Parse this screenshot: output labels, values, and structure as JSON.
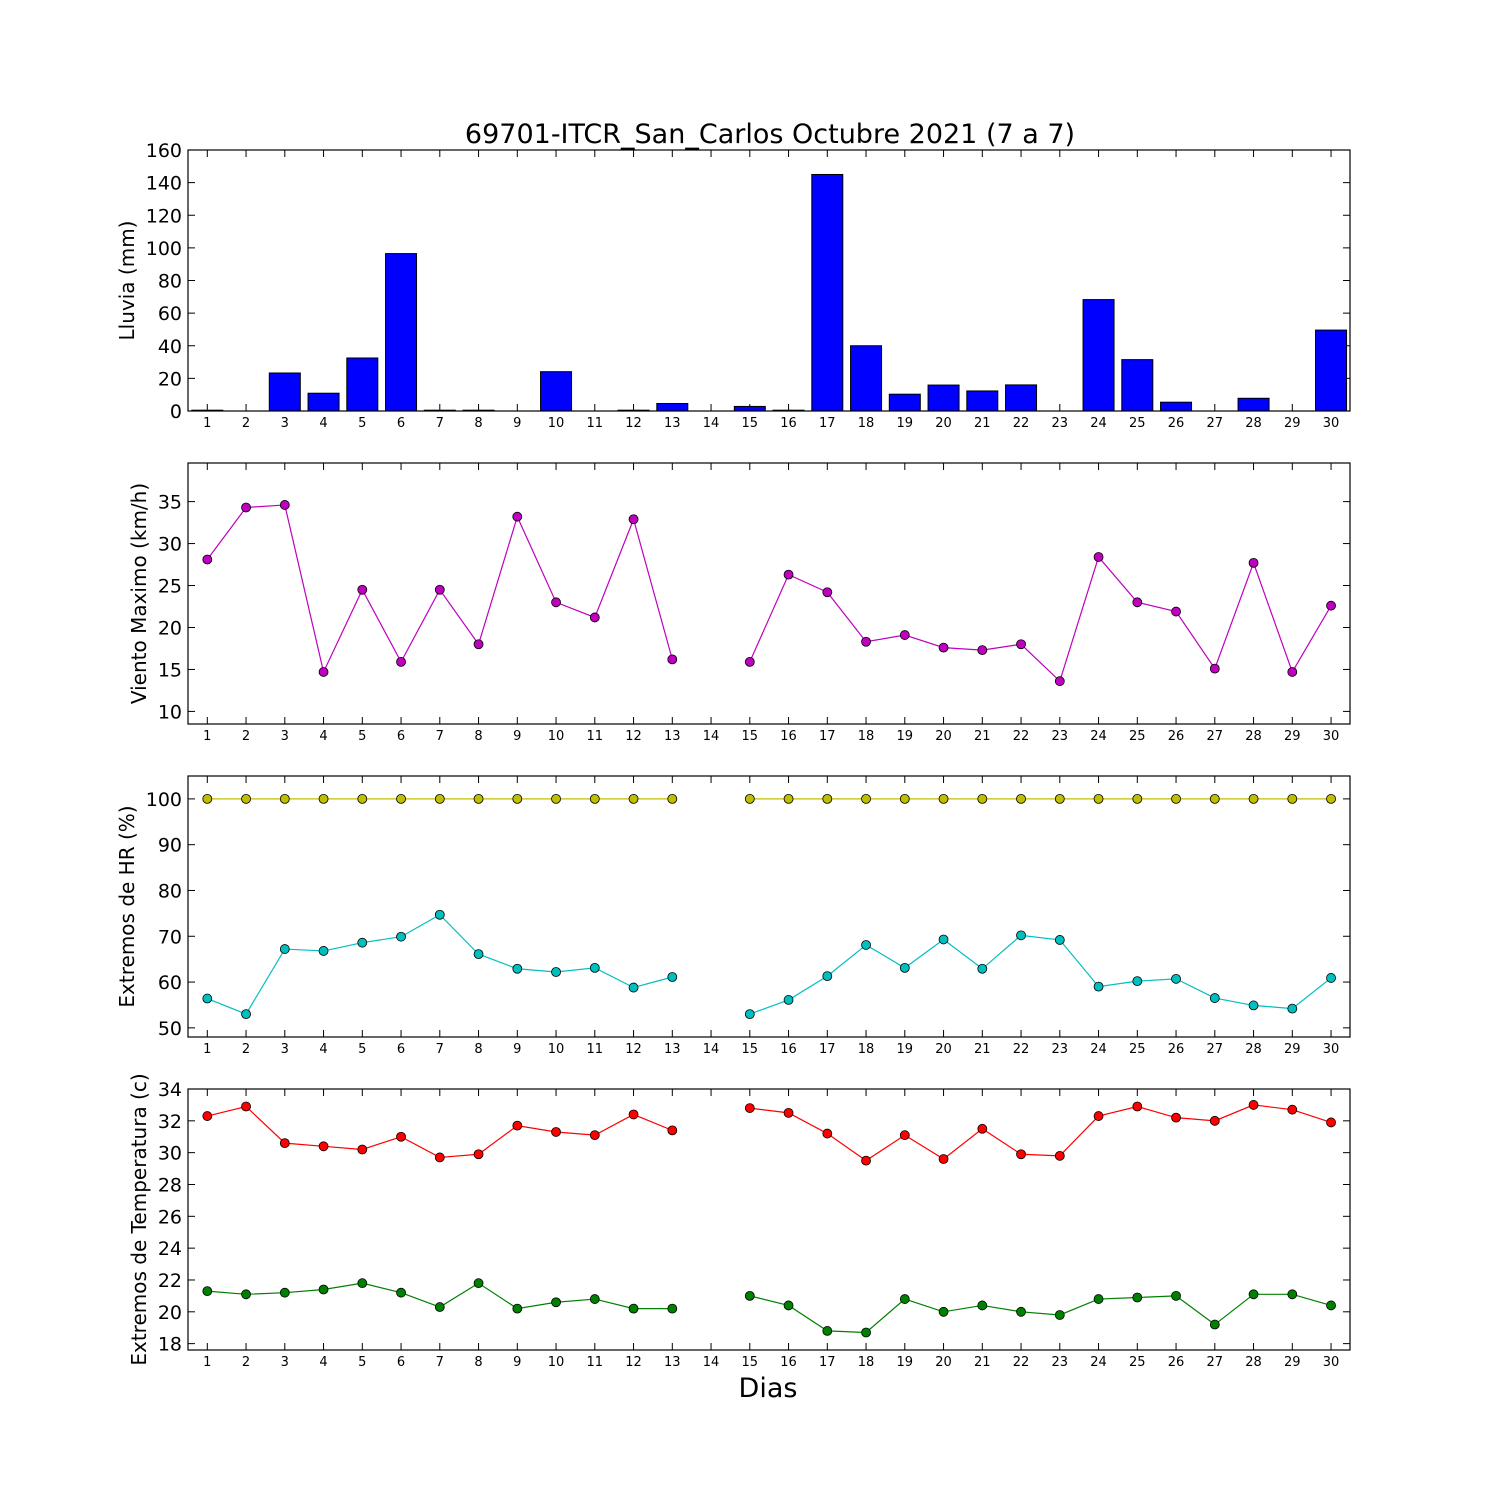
{
  "chart_data": {
    "title": "69701-ITCR_San_Carlos Octubre 2021  (7 a 7)",
    "xlabel": "Dias",
    "days": [
      1,
      2,
      3,
      4,
      5,
      6,
      7,
      8,
      9,
      10,
      11,
      12,
      13,
      14,
      15,
      16,
      17,
      18,
      19,
      20,
      21,
      22,
      23,
      24,
      25,
      26,
      27,
      28,
      29,
      30
    ],
    "panels": [
      {
        "type": "bar",
        "ylabel": "Lluvia (mm)",
        "ylim": [
          0,
          160
        ],
        "yticks": [
          0,
          20,
          40,
          60,
          80,
          100,
          120,
          140,
          160
        ],
        "series": [
          {
            "color": "#0000ff",
            "values": [
              0.5,
              0,
              23.3,
              10.9,
              32.5,
              96.5,
              0.5,
              0.5,
              0,
              24.1,
              0,
              0.5,
              4.6,
              0,
              2.8,
              0.5,
              145,
              40,
              10.3,
              15.9,
              12.3,
              16,
              0,
              68.3,
              31.5,
              5.4,
              0,
              7.8,
              0,
              49.6
            ]
          }
        ]
      },
      {
        "type": "line",
        "ylabel": "Viento Maximo (km/h)",
        "ylim": [
          8.5,
          39.6
        ],
        "yticks": [
          10,
          15,
          20,
          25,
          30,
          35
        ],
        "series": [
          {
            "color": "#bf00bf",
            "values": [
              28.1,
              34.3,
              34.6,
              14.7,
              24.5,
              15.9,
              24.5,
              18.0,
              33.2,
              23.0,
              21.2,
              32.9,
              16.2,
              null,
              15.9,
              26.3,
              24.2,
              18.3,
              19.1,
              17.6,
              17.3,
              18.0,
              13.6,
              28.4,
              23.0,
              21.9,
              15.1,
              27.7,
              14.7,
              22.6
            ]
          }
        ]
      },
      {
        "type": "line",
        "ylabel": "Extremos de HR (%)",
        "ylim": [
          48,
          105
        ],
        "yticks": [
          50,
          60,
          70,
          80,
          90,
          100
        ],
        "series": [
          {
            "color": "#bfbf00",
            "values": [
              100,
              100,
              100,
              100,
              100,
              100,
              100,
              100,
              100,
              100,
              100,
              100,
              100,
              null,
              100,
              100,
              100,
              100,
              100,
              100,
              100,
              100,
              100,
              100,
              100,
              100,
              100,
              100,
              100,
              100
            ]
          },
          {
            "color": "#00bfbf",
            "values": [
              56.4,
              53.0,
              67.2,
              66.8,
              68.6,
              69.9,
              74.7,
              66.1,
              62.9,
              62.2,
              63.1,
              58.8,
              61.1,
              null,
              53.0,
              56.1,
              61.3,
              68.1,
              63.1,
              69.3,
              62.9,
              70.2,
              69.2,
              59.0,
              60.2,
              60.7,
              56.5,
              54.9,
              54.2,
              60.9
            ]
          }
        ]
      },
      {
        "type": "line",
        "ylabel": "Extremos de Temperatura (c)",
        "ylim": [
          17.6,
          34
        ],
        "yticks": [
          18,
          20,
          22,
          24,
          26,
          28,
          30,
          32,
          34
        ],
        "series": [
          {
            "color": "#ff0000",
            "values": [
              32.3,
              32.9,
              30.6,
              30.4,
              30.2,
              31.0,
              29.7,
              29.9,
              31.7,
              31.3,
              31.1,
              32.4,
              31.4,
              null,
              32.8,
              32.5,
              31.2,
              29.5,
              31.1,
              29.6,
              31.5,
              29.9,
              29.8,
              32.3,
              32.9,
              32.2,
              32.0,
              33.0,
              32.7,
              31.9
            ]
          },
          {
            "color": "#008000",
            "values": [
              21.3,
              21.1,
              21.2,
              21.4,
              21.8,
              21.2,
              20.3,
              21.8,
              20.2,
              20.6,
              20.8,
              20.2,
              20.2,
              null,
              21.0,
              20.4,
              18.8,
              18.7,
              20.8,
              20.0,
              20.4,
              20.0,
              19.8,
              20.8,
              20.9,
              21.0,
              19.2,
              21.1,
              21.1,
              20.4
            ]
          }
        ]
      }
    ]
  }
}
